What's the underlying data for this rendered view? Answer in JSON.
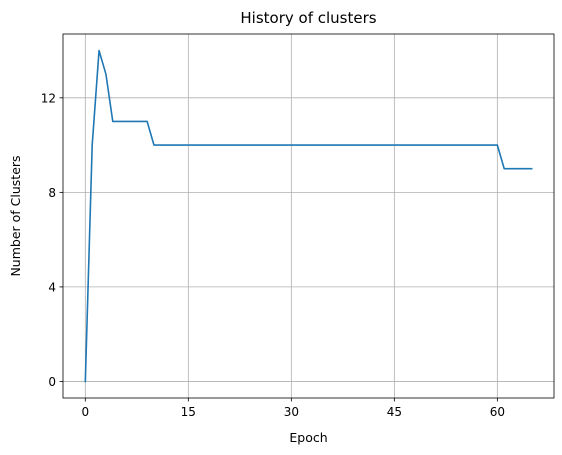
{
  "chart_data": {
    "type": "line",
    "title": "History of clusters",
    "xlabel": "Epoch",
    "ylabel": "Number of Clusters",
    "xlim": [
      -3.25,
      68.25
    ],
    "ylim": [
      -0.7,
      14.7
    ],
    "xticks": [
      0,
      15,
      30,
      45,
      60
    ],
    "yticks": [
      0,
      4,
      8,
      12
    ],
    "grid": true,
    "series": [
      {
        "color": "#1f77b4",
        "x": [
          0,
          1,
          2,
          3,
          4,
          5,
          6,
          7,
          8,
          9,
          10,
          11,
          12,
          13,
          14,
          15,
          16,
          17,
          18,
          19,
          20,
          21,
          22,
          23,
          24,
          25,
          26,
          27,
          28,
          29,
          30,
          31,
          32,
          33,
          34,
          35,
          36,
          37,
          38,
          39,
          40,
          41,
          42,
          43,
          44,
          45,
          46,
          47,
          48,
          49,
          50,
          51,
          52,
          53,
          54,
          55,
          56,
          57,
          58,
          59,
          60,
          61,
          62,
          63,
          64,
          65
        ],
        "y": [
          0,
          10,
          14,
          13,
          11,
          11,
          11,
          11,
          11,
          11,
          10,
          10,
          10,
          10,
          10,
          10,
          10,
          10,
          10,
          10,
          10,
          10,
          10,
          10,
          10,
          10,
          10,
          10,
          10,
          10,
          10,
          10,
          10,
          10,
          10,
          10,
          10,
          10,
          10,
          10,
          10,
          10,
          10,
          10,
          10,
          10,
          10,
          10,
          10,
          10,
          10,
          10,
          10,
          10,
          10,
          10,
          10,
          10,
          10,
          10,
          10,
          9,
          9,
          9,
          9,
          9
        ]
      }
    ]
  }
}
